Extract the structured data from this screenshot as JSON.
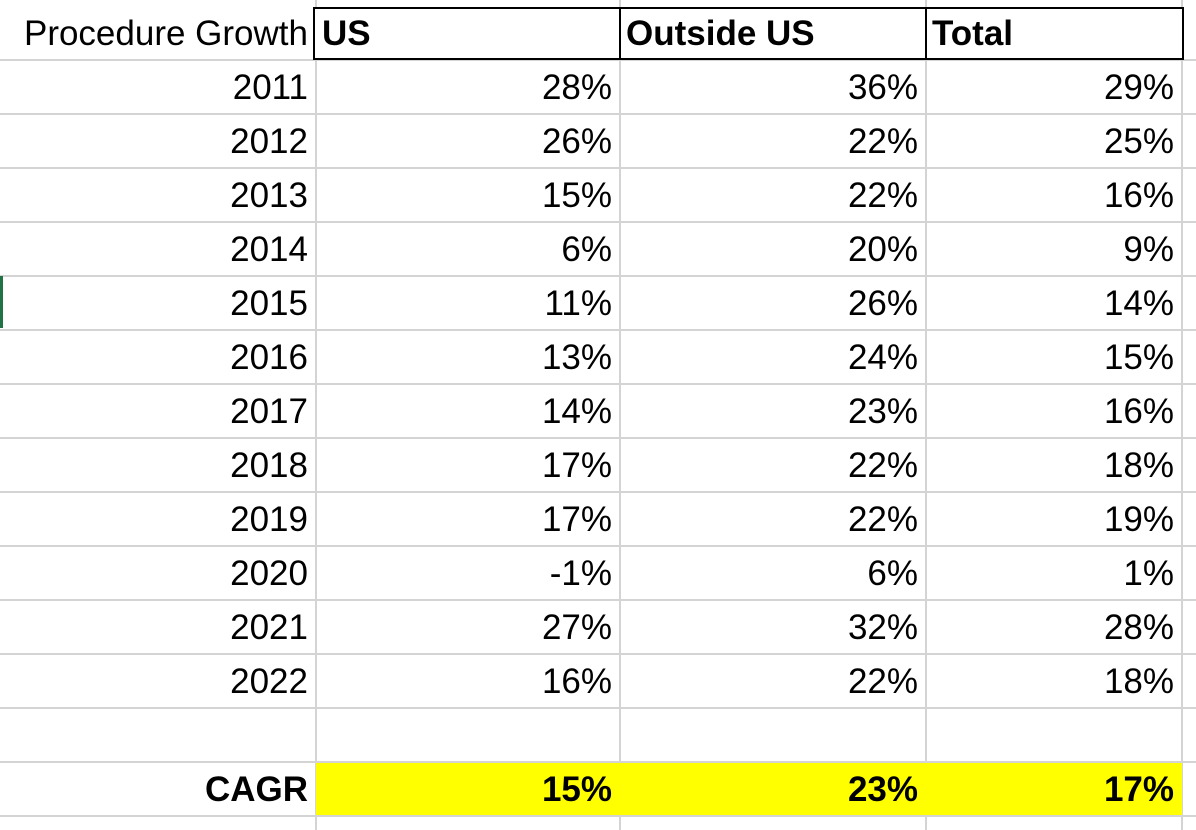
{
  "sheet": {
    "row_label_header": "Procedure Growth",
    "columns": [
      "US",
      "Outside US",
      "Total"
    ],
    "rows": [
      {
        "label": "2011",
        "values": [
          "28%",
          "36%",
          "29%"
        ]
      },
      {
        "label": "2012",
        "values": [
          "26%",
          "22%",
          "25%"
        ]
      },
      {
        "label": "2013",
        "values": [
          "15%",
          "22%",
          "16%"
        ]
      },
      {
        "label": "2014",
        "values": [
          "6%",
          "20%",
          "9%"
        ]
      },
      {
        "label": "2015",
        "values": [
          "11%",
          "26%",
          "14%"
        ]
      },
      {
        "label": "2016",
        "values": [
          "13%",
          "24%",
          "15%"
        ]
      },
      {
        "label": "2017",
        "values": [
          "14%",
          "23%",
          "16%"
        ]
      },
      {
        "label": "2018",
        "values": [
          "17%",
          "22%",
          "18%"
        ]
      },
      {
        "label": "2019",
        "values": [
          "17%",
          "22%",
          "19%"
        ]
      },
      {
        "label": "2020",
        "values": [
          "-1%",
          "6%",
          "1%"
        ]
      },
      {
        "label": "2021",
        "values": [
          "27%",
          "32%",
          "28%"
        ]
      },
      {
        "label": "2022",
        "values": [
          "16%",
          "22%",
          "18%"
        ]
      }
    ],
    "summary": {
      "label": "CAGR",
      "values": [
        "15%",
        "23%",
        "17%"
      ]
    }
  },
  "colors": {
    "highlight": "#ffff00",
    "gridline": "#d4d4d4",
    "selection": "#217346"
  }
}
